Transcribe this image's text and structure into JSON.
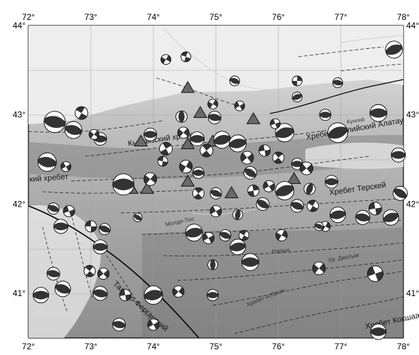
{
  "map": {
    "lon_ticks": [
      "72°",
      "73°",
      "74°",
      "75°",
      "76°",
      "77°",
      "78°"
    ],
    "lat_ticks": [
      "44°",
      "43°",
      "42°",
      "41°"
    ],
    "extent": {
      "lon_min": 72,
      "lon_max": 78,
      "lat_min": 40.5,
      "lat_max": 44
    },
    "place_labels": [
      {
        "id": "kyrgyz-range",
        "text": "Кыргызский хребет",
        "lon": 73.6,
        "lat": 42.65,
        "rot": -8
      },
      {
        "id": "talas-range",
        "text": "кий хребет",
        "lon": 72.02,
        "lat": 42.25,
        "rot": -4
      },
      {
        "id": "zailiysky-range",
        "text": "Хребет Заилийский Алатау",
        "lon": 76.45,
        "lat": 42.72,
        "rot": -10
      },
      {
        "id": "terskey-range",
        "text": "Хребет Терскей",
        "lon": 76.82,
        "lat": 42.1,
        "rot": -8
      },
      {
        "id": "ferghana-fault",
        "text": "Таласо-Ферганский",
        "lon": 73.35,
        "lat": 41.1,
        "rot": 42
      },
      {
        "id": "kokshaal-range",
        "text": "Хребет Кокшаал",
        "lon": 77.4,
        "lat": 40.6,
        "rot": -12
      }
    ],
    "small_labels": [
      {
        "text": "Хребет Атбаши",
        "lon": 75.5,
        "lat": 40.85,
        "rot": -22
      },
      {
        "text": "Нарын",
        "lon": 75.9,
        "lat": 41.45,
        "rot": -5
      },
      {
        "text": "Хр. Джетым",
        "lon": 76.8,
        "lat": 41.35,
        "rot": -10
      },
      {
        "text": "Кунгей",
        "lon": 77.1,
        "lat": 42.9,
        "rot": -8
      },
      {
        "text": "Молдо-Тоо",
        "lon": 74.2,
        "lat": 41.75,
        "rot": -12
      }
    ],
    "volcano_triangles": [
      {
        "lon": 74.55,
        "lat": 43.3
      },
      {
        "lon": 74.75,
        "lat": 43.02
      },
      {
        "lon": 75.6,
        "lat": 42.95
      },
      {
        "lon": 73.8,
        "lat": 42.7
      },
      {
        "lon": 74.55,
        "lat": 42.67
      },
      {
        "lon": 74.95,
        "lat": 42.7
      },
      {
        "lon": 74.55,
        "lat": 42.25
      },
      {
        "lon": 75.25,
        "lat": 42.12
      },
      {
        "lon": 73.65,
        "lat": 42.17
      },
      {
        "lon": 73.9,
        "lat": 42.17
      },
      {
        "lon": 76.25,
        "lat": 42.28
      }
    ],
    "focal_mechanisms": [
      {
        "lon": 74.2,
        "lat": 43.62,
        "r": 7,
        "strike": 30,
        "type": "ss"
      },
      {
        "lon": 74.52,
        "lat": 43.65,
        "r": 7,
        "strike": 110,
        "type": "ss"
      },
      {
        "lon": 75.3,
        "lat": 43.38,
        "r": 7,
        "strike": 20,
        "type": "th"
      },
      {
        "lon": 76.3,
        "lat": 43.38,
        "r": 7,
        "strike": 0,
        "type": "ss"
      },
      {
        "lon": 76.3,
        "lat": 43.2,
        "r": 7,
        "strike": 160,
        "type": "th"
      },
      {
        "lon": 76.95,
        "lat": 43.36,
        "r": 7,
        "strike": 10,
        "type": "th"
      },
      {
        "lon": 77.85,
        "lat": 43.73,
        "r": 12,
        "strike": -20,
        "type": "th"
      },
      {
        "lon": 72.42,
        "lat": 42.92,
        "r": 15,
        "strike": 10,
        "type": "th"
      },
      {
        "lon": 72.72,
        "lat": 42.83,
        "r": 12,
        "strike": 15,
        "type": "th"
      },
      {
        "lon": 72.85,
        "lat": 43.02,
        "r": 9,
        "strike": 120,
        "type": "ss"
      },
      {
        "lon": 73.15,
        "lat": 42.73,
        "r": 9,
        "strike": 0,
        "type": "th"
      },
      {
        "lon": 73.05,
        "lat": 42.78,
        "r": 7,
        "strike": 40,
        "type": "ss"
      },
      {
        "lon": 73.95,
        "lat": 42.78,
        "r": 9,
        "strike": 0,
        "type": "th"
      },
      {
        "lon": 74.2,
        "lat": 42.62,
        "r": 9,
        "strike": 150,
        "type": "ss"
      },
      {
        "lon": 74.48,
        "lat": 42.8,
        "r": 8,
        "strike": 40,
        "type": "ss"
      },
      {
        "lon": 74.45,
        "lat": 42.98,
        "r": 8,
        "strike": 90,
        "type": "th"
      },
      {
        "lon": 74.95,
        "lat": 43.12,
        "r": 7,
        "strike": 30,
        "type": "ss"
      },
      {
        "lon": 74.98,
        "lat": 42.97,
        "r": 9,
        "strike": 10,
        "type": "th"
      },
      {
        "lon": 75.38,
        "lat": 43.1,
        "r": 7,
        "strike": 60,
        "type": "ss"
      },
      {
        "lon": 74.7,
        "lat": 42.73,
        "r": 10,
        "strike": 0,
        "type": "th"
      },
      {
        "lon": 74.85,
        "lat": 42.6,
        "r": 9,
        "strike": 140,
        "type": "ss"
      },
      {
        "lon": 75.1,
        "lat": 42.72,
        "r": 12,
        "strike": -15,
        "type": "th"
      },
      {
        "lon": 75.35,
        "lat": 42.68,
        "r": 12,
        "strike": -10,
        "type": "th"
      },
      {
        "lon": 75.5,
        "lat": 42.52,
        "r": 9,
        "strike": 50,
        "type": "ss"
      },
      {
        "lon": 75.55,
        "lat": 42.35,
        "r": 9,
        "strike": 30,
        "type": "th"
      },
      {
        "lon": 75.78,
        "lat": 42.6,
        "r": 8,
        "strike": 80,
        "type": "ss"
      },
      {
        "lon": 76.1,
        "lat": 42.8,
        "r": 13,
        "strike": -15,
        "type": "th"
      },
      {
        "lon": 76.75,
        "lat": 43.0,
        "r": 8,
        "strike": 0,
        "type": "th"
      },
      {
        "lon": 76.95,
        "lat": 42.8,
        "r": 14,
        "strike": -20,
        "type": "th"
      },
      {
        "lon": 77.6,
        "lat": 43.02,
        "r": 12,
        "strike": 0,
        "type": "th"
      },
      {
        "lon": 76.0,
        "lat": 42.52,
        "r": 8,
        "strike": 140,
        "type": "ss"
      },
      {
        "lon": 76.3,
        "lat": 42.45,
        "r": 8,
        "strike": 0,
        "type": "th"
      },
      {
        "lon": 76.45,
        "lat": 42.4,
        "r": 9,
        "strike": 50,
        "type": "ss"
      },
      {
        "lon": 76.5,
        "lat": 42.17,
        "r": 8,
        "strike": 110,
        "type": "th"
      },
      {
        "lon": 76.1,
        "lat": 42.15,
        "r": 13,
        "strike": -20,
        "type": "th"
      },
      {
        "lon": 75.85,
        "lat": 42.2,
        "r": 8,
        "strike": 60,
        "type": "ss"
      },
      {
        "lon": 75.75,
        "lat": 42.0,
        "r": 9,
        "strike": 30,
        "type": "th"
      },
      {
        "lon": 75.6,
        "lat": 42.15,
        "r": 8,
        "strike": 170,
        "type": "ss"
      },
      {
        "lon": 76.3,
        "lat": 41.98,
        "r": 9,
        "strike": 20,
        "type": "th"
      },
      {
        "lon": 76.55,
        "lat": 41.98,
        "r": 8,
        "strike": 120,
        "type": "ss"
      },
      {
        "lon": 76.85,
        "lat": 42.25,
        "r": 9,
        "strike": 0,
        "type": "th"
      },
      {
        "lon": 76.95,
        "lat": 41.88,
        "r": 11,
        "strike": -10,
        "type": "th"
      },
      {
        "lon": 76.75,
        "lat": 41.75,
        "r": 7,
        "strike": 30,
        "type": "ss"
      },
      {
        "lon": 77.35,
        "lat": 41.85,
        "r": 10,
        "strike": 10,
        "type": "th"
      },
      {
        "lon": 77.55,
        "lat": 41.95,
        "r": 9,
        "strike": 80,
        "type": "ss"
      },
      {
        "lon": 77.8,
        "lat": 41.85,
        "r": 11,
        "strike": -20,
        "type": "th"
      },
      {
        "lon": 77.92,
        "lat": 42.55,
        "r": 10,
        "strike": 0,
        "type": "th"
      },
      {
        "lon": 77.95,
        "lat": 42.12,
        "r": 10,
        "strike": 30,
        "type": "th"
      },
      {
        "lon": 72.3,
        "lat": 42.47,
        "r": 13,
        "strike": 10,
        "type": "th"
      },
      {
        "lon": 72.6,
        "lat": 42.42,
        "r": 7,
        "strike": 60,
        "type": "ss"
      },
      {
        "lon": 73.52,
        "lat": 42.22,
        "r": 15,
        "strike": 0,
        "type": "th"
      },
      {
        "lon": 73.95,
        "lat": 42.28,
        "r": 9,
        "strike": 40,
        "type": "ss"
      },
      {
        "lon": 74.52,
        "lat": 42.42,
        "r": 9,
        "strike": 30,
        "type": "ss"
      },
      {
        "lon": 74.72,
        "lat": 42.35,
        "r": 8,
        "strike": 0,
        "type": "th"
      },
      {
        "lon": 74.72,
        "lat": 42.12,
        "r": 8,
        "strike": 140,
        "type": "ss"
      },
      {
        "lon": 75.0,
        "lat": 42.12,
        "r": 8,
        "strike": 20,
        "type": "th"
      },
      {
        "lon": 75.0,
        "lat": 41.92,
        "r": 8,
        "strike": 60,
        "type": "ss"
      },
      {
        "lon": 75.35,
        "lat": 41.88,
        "r": 7,
        "strike": 100,
        "type": "th"
      },
      {
        "lon": 72.4,
        "lat": 41.95,
        "r": 8,
        "strike": 20,
        "type": "th"
      },
      {
        "lon": 72.65,
        "lat": 41.92,
        "r": 8,
        "strike": 70,
        "type": "ss"
      },
      {
        "lon": 72.52,
        "lat": 41.75,
        "r": 10,
        "strike": 0,
        "type": "th"
      },
      {
        "lon": 73.0,
        "lat": 41.75,
        "r": 8,
        "strike": 90,
        "type": "ss"
      },
      {
        "lon": 73.22,
        "lat": 41.72,
        "r": 8,
        "strike": 20,
        "type": "th"
      },
      {
        "lon": 73.15,
        "lat": 41.52,
        "r": 10,
        "strike": 0,
        "type": "th"
      },
      {
        "lon": 74.65,
        "lat": 41.68,
        "r": 12,
        "strike": -10,
        "type": "th"
      },
      {
        "lon": 74.88,
        "lat": 41.62,
        "r": 8,
        "strike": 60,
        "type": "ss"
      },
      {
        "lon": 75.15,
        "lat": 41.65,
        "r": 8,
        "strike": 20,
        "type": "th"
      },
      {
        "lon": 75.35,
        "lat": 41.52,
        "r": 11,
        "strike": -10,
        "type": "th"
      },
      {
        "lon": 75.45,
        "lat": 41.65,
        "r": 7,
        "strike": 120,
        "type": "ss"
      },
      {
        "lon": 75.55,
        "lat": 41.35,
        "r": 12,
        "strike": 0,
        "type": "th"
      },
      {
        "lon": 76.05,
        "lat": 41.65,
        "r": 8,
        "strike": 30,
        "type": "ss"
      },
      {
        "lon": 74.95,
        "lat": 41.32,
        "r": 7,
        "strike": 90,
        "type": "th"
      },
      {
        "lon": 76.65,
        "lat": 41.28,
        "r": 9,
        "strike": 40,
        "type": "ss"
      },
      {
        "lon": 77.55,
        "lat": 41.22,
        "r": 11,
        "strike": 70,
        "type": "ss"
      },
      {
        "lon": 72.4,
        "lat": 41.22,
        "r": 9,
        "strike": 10,
        "type": "th"
      },
      {
        "lon": 72.98,
        "lat": 41.25,
        "r": 8,
        "strike": 130,
        "type": "ss"
      },
      {
        "lon": 73.2,
        "lat": 41.22,
        "r": 8,
        "strike": 50,
        "type": "ss"
      },
      {
        "lon": 72.55,
        "lat": 41.05,
        "r": 11,
        "strike": 20,
        "type": "th"
      },
      {
        "lon": 73.15,
        "lat": 41.0,
        "r": 10,
        "strike": 10,
        "type": "th"
      },
      {
        "lon": 72.2,
        "lat": 40.98,
        "r": 11,
        "strike": 0,
        "type": "th"
      },
      {
        "lon": 73.55,
        "lat": 40.98,
        "r": 8,
        "strike": 80,
        "type": "ss"
      },
      {
        "lon": 74.0,
        "lat": 40.98,
        "r": 13,
        "strike": -10,
        "type": "th"
      },
      {
        "lon": 74.4,
        "lat": 41.02,
        "r": 8,
        "strike": 40,
        "type": "ss"
      },
      {
        "lon": 74.95,
        "lat": 40.98,
        "r": 8,
        "strike": 0,
        "type": "th"
      },
      {
        "lon": 74.0,
        "lat": 40.65,
        "r": 8,
        "strike": 60,
        "type": "ss"
      },
      {
        "lon": 73.45,
        "lat": 40.65,
        "r": 9,
        "strike": 10,
        "type": "th"
      },
      {
        "lon": 77.6,
        "lat": 40.57,
        "r": 11,
        "strike": 0,
        "type": "th"
      },
      {
        "lon": 76.65,
        "lat": 41.75,
        "r": 6,
        "strike": 20,
        "type": "th"
      },
      {
        "lon": 75.95,
        "lat": 42.9,
        "r": 7,
        "strike": 70,
        "type": "ss"
      },
      {
        "lon": 74.15,
        "lat": 42.48,
        "r": 7,
        "strike": 100,
        "type": "ss"
      },
      {
        "lon": 73.75,
        "lat": 41.85,
        "r": 6,
        "strike": 30,
        "type": "th"
      }
    ]
  }
}
